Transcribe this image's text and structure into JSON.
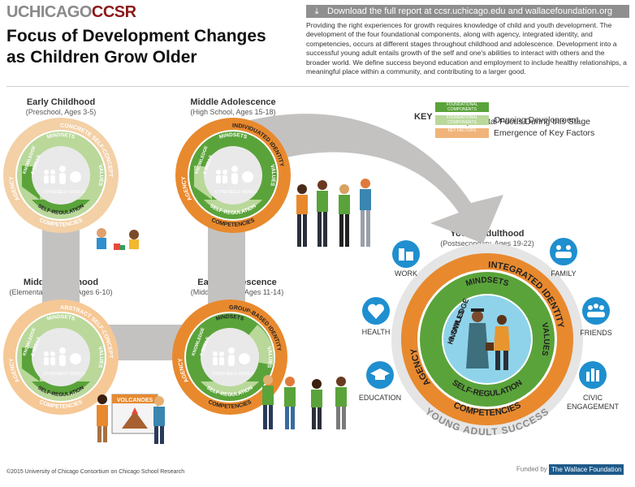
{
  "header": {
    "logo_part1": "UCHICAGO",
    "logo_part2": "CCSR",
    "title_line1": "Focus of Development Changes",
    "title_line2": "as Children Grow Older",
    "download_text": "Download the full report at ccsr.uchicago.edu and wallacefoundation.org",
    "intro": "Providing the right experiences for growth requires knowledge of child and youth development. The development of the four foundational components, along with agency, integrated identity, and competencies, occurs at different stages throughout childhood and adolescence. Development into a successful young adult entails growth of the self and one's abilities to interact with others and the broader world. We define success beyond education and employment to include healthy relationships, a meaningful place within a community, and contributing to a larger good."
  },
  "key": {
    "label": "KEY",
    "items": [
      {
        "swatch": "FOUNDATIONAL COMPONENTS",
        "label": "Developmental Focus During this Stage",
        "color": "#5aa33a"
      },
      {
        "swatch": "FOUNDATIONAL COMPONENTS",
        "label": "Ongoing Development",
        "color": "#b9d89a"
      },
      {
        "swatch": "KEY FACTORS",
        "label": "Emergence of Key Factors",
        "color": "#f0b47a"
      }
    ]
  },
  "stages": {
    "early_childhood": {
      "name": "Early Childhood",
      "sub": "(Preschool, Ages 3-5)"
    },
    "middle_childhood": {
      "name": "Middle Childhood",
      "sub": "(Elementary School, Ages 6-10)"
    },
    "early_adolescence": {
      "name": "Early Adolescence",
      "sub": "(Middle Grades, Ages 11-14)"
    },
    "middle_adolescence": {
      "name": "Middle Adolescence",
      "sub": "(High School, Ages 15-18)"
    },
    "young_adulthood": {
      "name": "Young Adulthood",
      "sub": "(Postsecondary, Ages 19-22)"
    }
  },
  "wheel_labels": {
    "mindsets": "MINDSETS",
    "values": "VALUES",
    "knowledge": "KNOWLEDGE",
    "skills": "& SKILLS",
    "self_regulation": "SELF-REGULATION",
    "competencies": "COMPETENCIES",
    "agency": "AGENCY",
    "others": "OTHERS",
    "self": "SELF",
    "world": "WORLD"
  },
  "identities": {
    "early_childhood": "CONCRETE SELF-CONCEPT",
    "middle_childhood": "ABSTRACT SELF-CONCEPT",
    "early_adolescence": "GROUP-BASED IDENTITY",
    "middle_adolescence": "INDIVIDUATED IDENTITY",
    "young_adulthood": "INTEGRATED IDENTITY"
  },
  "volcanoes_sign": "VOLCANOES",
  "success": {
    "label": "YOUNG ADULT SUCCESS",
    "items": [
      "WORK",
      "FAMILY",
      "HEALTH",
      "FRIENDS",
      "EDUCATION",
      "CIVIC",
      "ENGAGEMENT"
    ]
  },
  "footer": {
    "copyright": "©2015 University of Chicago Consortium on Chicago School Research",
    "funded_by": "Funded by",
    "foundation": "The Wallace Foundation"
  },
  "colors": {
    "dark_green": "#5aa33a",
    "light_green": "#b9d89a",
    "orange": "#e8892e",
    "light_orange": "#f6c896",
    "peach": "#f3d0a6",
    "gray_arrow": "#c4c2c0",
    "blue_icon": "#1f8fcf"
  }
}
